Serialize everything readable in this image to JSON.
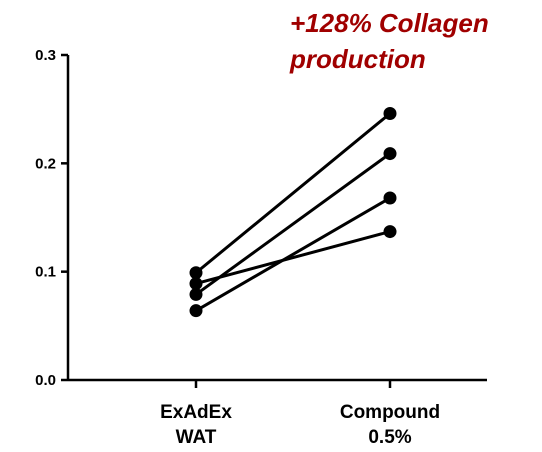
{
  "chart_data": {
    "type": "line",
    "title": "",
    "xlabel": "",
    "ylabel": "",
    "categories": [
      [
        "ExAdEx",
        "WAT"
      ],
      [
        "Compound",
        "0.5%"
      ]
    ],
    "ylim": [
      0.0,
      0.3
    ],
    "yticks": [
      0.0,
      0.1,
      0.2,
      0.3
    ],
    "ytick_labels": [
      "0.0",
      "0.1",
      "0.2",
      "0.3"
    ],
    "series": [
      {
        "values": [
          0.099,
          0.246
        ]
      },
      {
        "values": [
          0.079,
          0.209
        ]
      },
      {
        "values": [
          0.064,
          0.168
        ]
      },
      {
        "values": [
          0.089,
          0.137
        ]
      }
    ],
    "annotation": {
      "lines": [
        "+128% Collagen",
        "production"
      ],
      "color": "#a00000"
    },
    "colors": {
      "line": "#000000",
      "marker": "#000000"
    },
    "grid": false,
    "legend": "none"
  }
}
